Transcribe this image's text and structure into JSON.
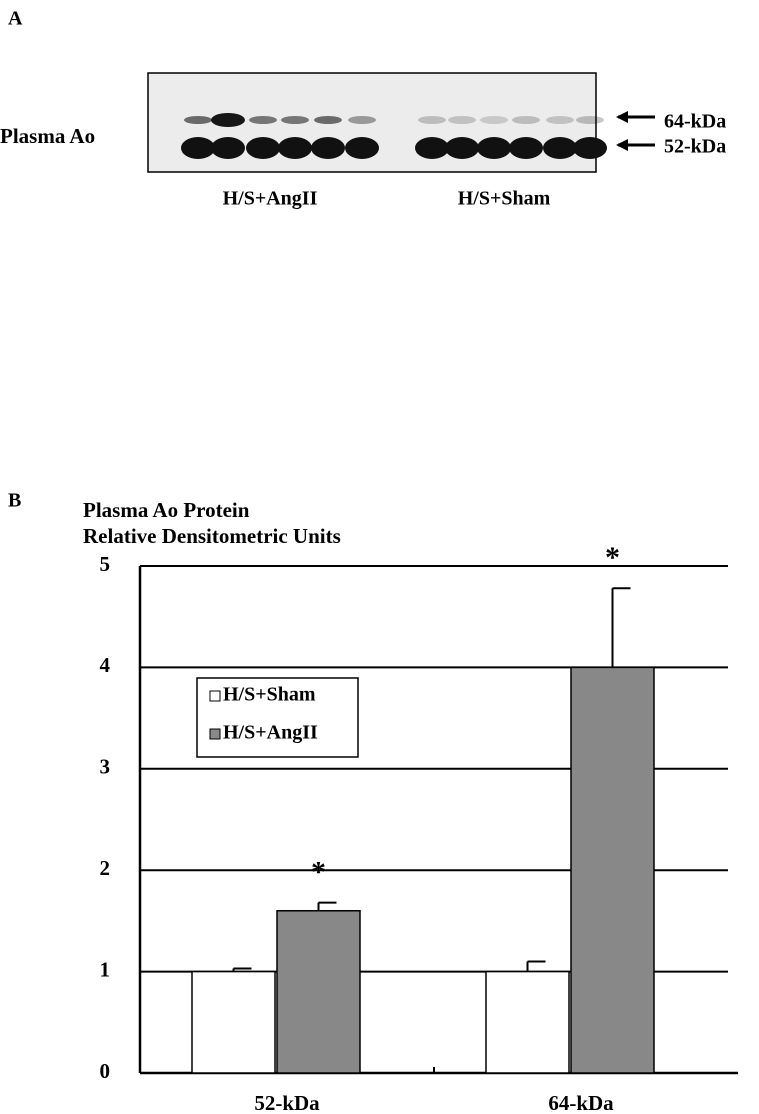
{
  "panel_a": {
    "label": "A",
    "row_label": "Plasma Ao",
    "band_labels": [
      "64-kDa",
      "52-kDa"
    ],
    "group_labels": [
      "H/S+AngII",
      "H/S+Sham"
    ]
  },
  "chart_data": {
    "type": "bar",
    "panel_label": "B",
    "title": [
      "Plasma Ao Protein",
      "Relative Densitometric Units"
    ],
    "categories": [
      "52-kDa",
      "64-kDa"
    ],
    "series": [
      {
        "name": "H/S+Sham",
        "color": "#ffffff",
        "values": [
          1.0,
          1.0
        ],
        "errors": [
          0.03,
          0.1
        ]
      },
      {
        "name": "H/S+AngII",
        "color": "#888888",
        "values": [
          1.6,
          4.0
        ],
        "errors": [
          0.08,
          0.78
        ]
      }
    ],
    "annotations": [
      "*",
      "*"
    ],
    "ylim": [
      0,
      5
    ],
    "yticks": [
      0,
      1,
      2,
      3,
      4,
      5
    ],
    "grid": true,
    "legend": "upper left"
  }
}
